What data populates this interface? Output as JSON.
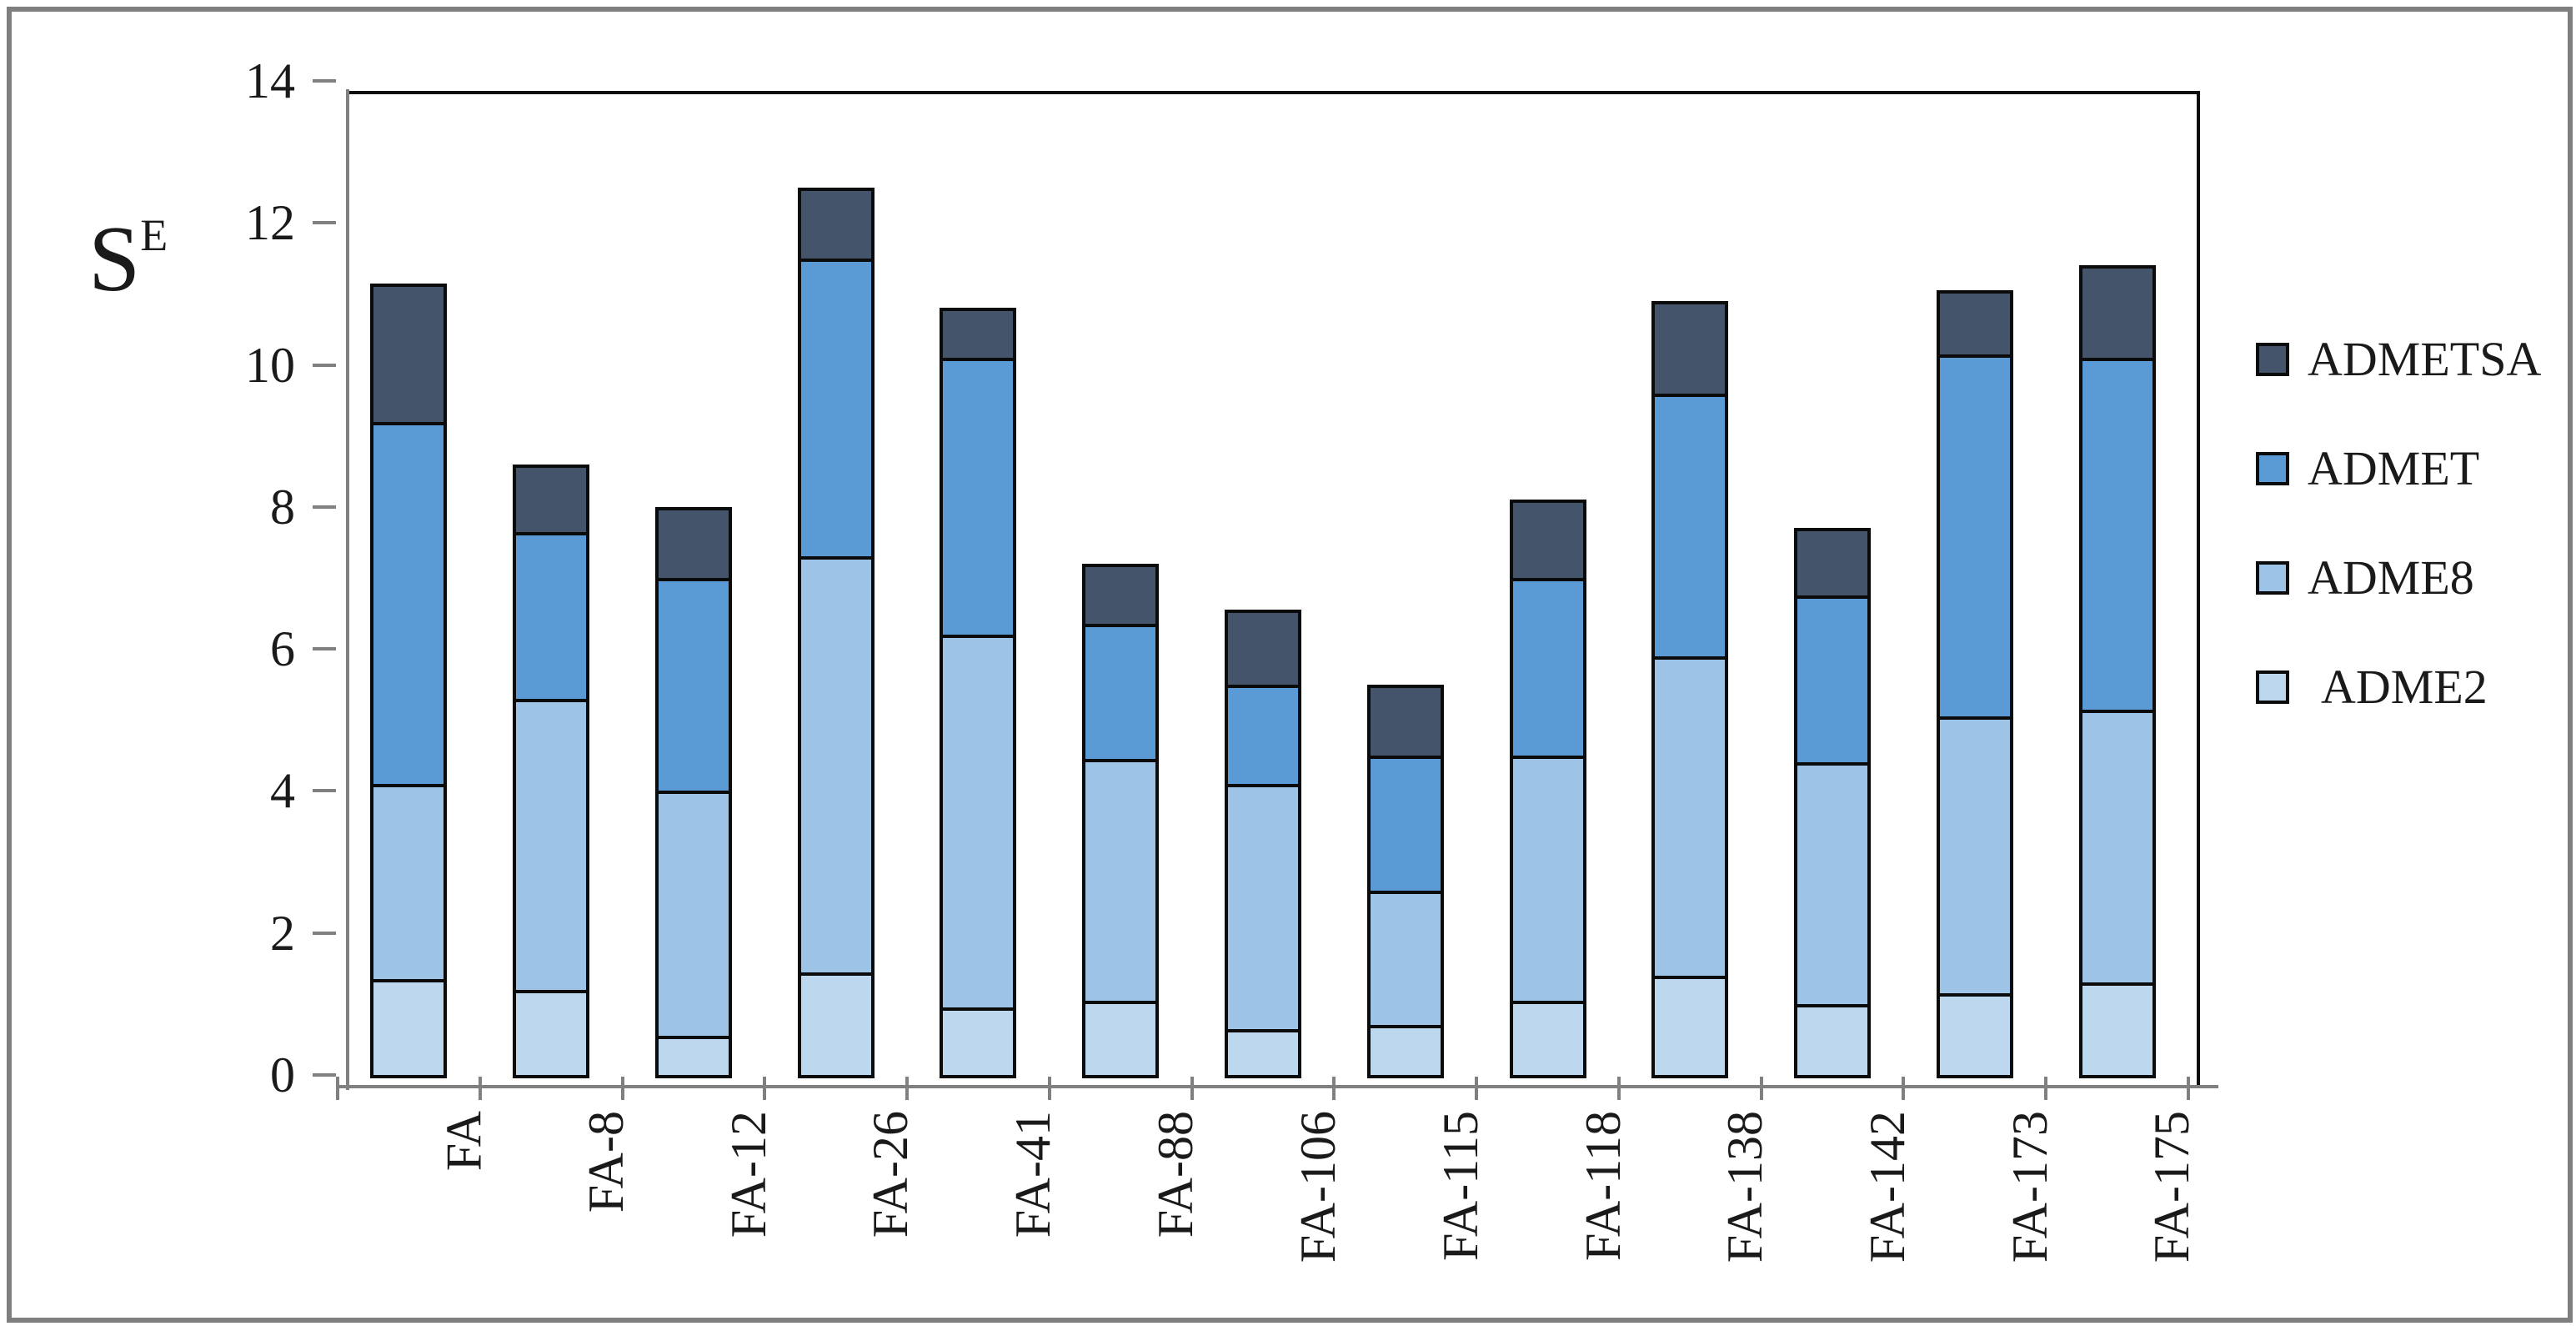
{
  "figure": {
    "background_color": "#ffffff",
    "border_color": "#7f7f7f",
    "axis_color": "#808080",
    "frame_color": "#0d0d0d"
  },
  "chart_data": {
    "type": "bar",
    "stacked": true,
    "title": "",
    "y_axis_title": {
      "base": "S",
      "superscript": "E"
    },
    "categories": [
      "FA",
      "FA-8",
      "FA-12",
      "FA-26",
      "FA-41",
      "FA-88",
      "FA-106",
      "FA-115",
      "FA-118",
      "FA-138",
      "FA-142",
      "FA-173",
      "FA-175"
    ],
    "series": [
      {
        "name": "ADME2",
        "color": "#BDD7EE",
        "values": [
          1.35,
          1.2,
          0.55,
          1.45,
          0.95,
          1.05,
          0.65,
          0.7,
          1.05,
          1.4,
          1.0,
          1.15,
          1.3
        ]
      },
      {
        "name": "ADME8",
        "color": "#9DC3E6",
        "values": [
          2.75,
          4.1,
          3.45,
          5.85,
          5.25,
          3.4,
          3.45,
          1.9,
          3.45,
          4.5,
          3.4,
          3.9,
          3.85
        ]
      },
      {
        "name": "ADMET",
        "color": "#5B9BD5",
        "values": [
          5.1,
          2.35,
          3.0,
          4.2,
          3.9,
          1.9,
          1.4,
          1.9,
          2.5,
          3.7,
          2.35,
          5.1,
          4.95
        ]
      },
      {
        "name": "ADMETSA",
        "color": "#44546A",
        "values": [
          1.95,
          0.95,
          1.0,
          1.0,
          0.7,
          0.85,
          1.05,
          1.0,
          1.1,
          1.3,
          0.95,
          0.9,
          1.3
        ]
      }
    ],
    "totals": [
      11.15,
      8.6,
      8.0,
      12.5,
      10.8,
      7.2,
      6.55,
      5.5,
      8.1,
      10.9,
      7.7,
      11.05,
      11.4
    ],
    "y_axis": {
      "min": 0,
      "max": 14,
      "tick_interval": 2,
      "tick_labels": [
        "0",
        "2",
        "4",
        "6",
        "8",
        "10",
        "12",
        "14"
      ]
    },
    "grid": false,
    "legend": {
      "position": "right",
      "order": [
        "ADMETSA",
        "ADMET",
        "ADME8",
        "ADME2"
      ]
    }
  }
}
